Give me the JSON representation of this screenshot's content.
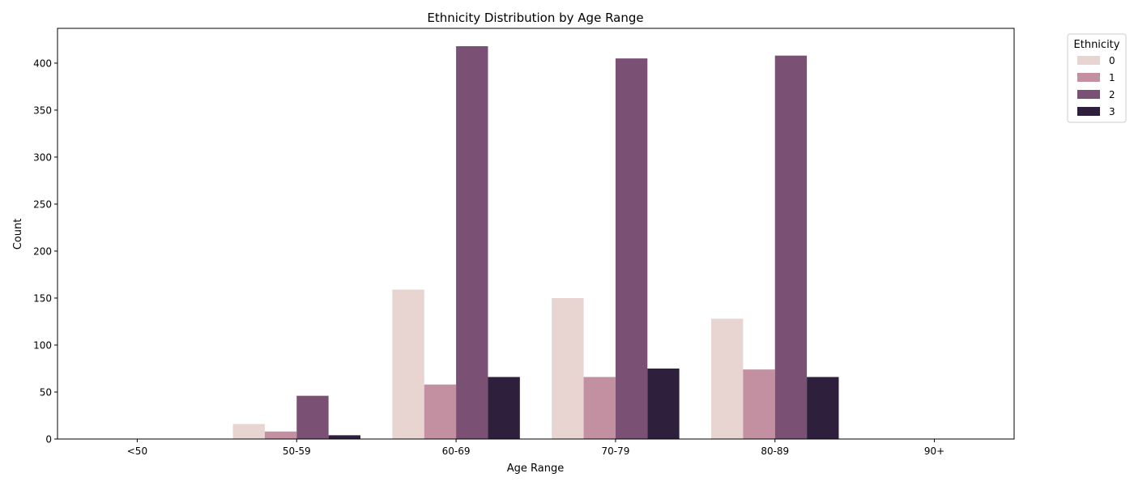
{
  "chart_data": {
    "type": "bar",
    "title": "Ethnicity Distribution by Age Range",
    "xlabel": "Age Range",
    "ylabel": "Count",
    "categories": [
      "<50",
      "50-59",
      "60-69",
      "70-79",
      "80-89",
      "90+"
    ],
    "ylim": [
      0,
      437
    ],
    "yticks": [
      0,
      50,
      100,
      150,
      200,
      250,
      300,
      350,
      400
    ],
    "grid": false,
    "legend": {
      "title": "Ethnicity",
      "placement": "upper right, outside plot"
    },
    "series": [
      {
        "name": "0",
        "color": "#e8d5d2",
        "values": [
          0,
          16,
          159,
          150,
          128,
          0
        ]
      },
      {
        "name": "1",
        "color": "#c290a0",
        "values": [
          0,
          8,
          58,
          66,
          74,
          0
        ]
      },
      {
        "name": "2",
        "color": "#7a5175",
        "values": [
          0,
          46,
          418,
          405,
          408,
          0
        ]
      },
      {
        "name": "3",
        "color": "#2e1f3c",
        "values": [
          0,
          4,
          66,
          75,
          66,
          0
        ]
      }
    ]
  }
}
